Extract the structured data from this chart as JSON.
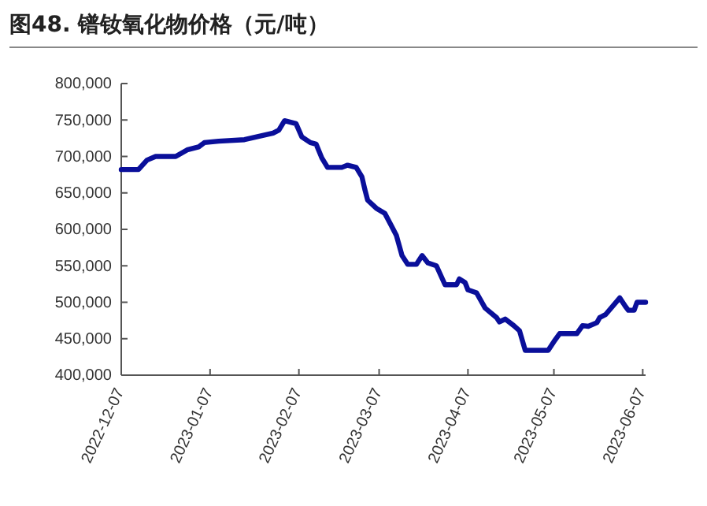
{
  "chart_data": {
    "type": "line",
    "title": "图48. 镨钕氧化物价格（元/吨）",
    "x": [
      "2022-12-07",
      "2022-12-13",
      "2022-12-16",
      "2022-12-19",
      "2022-12-26",
      "2022-12-30",
      "2023-01-03",
      "2023-01-05",
      "2023-01-10",
      "2023-01-19",
      "2023-01-29",
      "2023-01-31",
      "2023-02-02",
      "2023-02-06",
      "2023-02-08",
      "2023-02-11",
      "2023-02-13",
      "2023-02-15",
      "2023-02-17",
      "2023-02-22",
      "2023-02-24",
      "2023-02-27",
      "2023-03-01",
      "2023-03-02",
      "2023-03-03",
      "2023-03-06",
      "2023-03-09",
      "2023-03-11",
      "2023-03-13",
      "2023-03-15",
      "2023-03-17",
      "2023-03-20",
      "2023-03-22",
      "2023-03-24",
      "2023-03-27",
      "2023-03-30",
      "2023-04-03",
      "2023-04-04",
      "2023-04-06",
      "2023-04-07",
      "2023-04-10",
      "2023-04-13",
      "2023-04-17",
      "2023-04-18",
      "2023-04-20",
      "2023-04-23",
      "2023-04-25",
      "2023-04-27",
      "2023-05-05",
      "2023-05-07",
      "2023-05-09",
      "2023-05-15",
      "2023-05-17",
      "2023-05-19",
      "2023-05-22",
      "2023-05-23",
      "2023-05-25",
      "2023-05-30",
      "2023-06-01",
      "2023-06-02",
      "2023-06-04",
      "2023-06-05",
      "2023-06-08"
    ],
    "series": [
      {
        "color": "#0a0f9a",
        "values": [
          682000,
          682000,
          695000,
          700000,
          700000,
          709000,
          713000,
          719000,
          721000,
          723000,
          732000,
          736000,
          749000,
          745000,
          727000,
          719000,
          717000,
          698000,
          685000,
          685000,
          688000,
          685000,
          672000,
          655000,
          640000,
          629000,
          622000,
          607000,
          592000,
          564000,
          552000,
          552000,
          564000,
          554000,
          550000,
          524000,
          524000,
          532000,
          527000,
          517000,
          513000,
          492000,
          479000,
          473000,
          477000,
          468000,
          461000,
          434000,
          434000,
          446000,
          457000,
          457000,
          468000,
          467000,
          472000,
          479000,
          483000,
          506000,
          494000,
          489000,
          489000,
          500000,
          500000
        ]
      }
    ],
    "xlim": [
      "2022-12-07",
      "2023-06-08"
    ],
    "xticks": [
      {
        "value": "2022-12-07",
        "label": "2022-12-07"
      },
      {
        "value": "2023-01-07",
        "label": "2023-01-07"
      },
      {
        "value": "2023-02-07",
        "label": "2023-02-07"
      },
      {
        "value": "2023-03-07",
        "label": "2023-03-07"
      },
      {
        "value": "2023-04-07",
        "label": "2023-04-07"
      },
      {
        "value": "2023-05-07",
        "label": "2023-05-07"
      },
      {
        "value": "2023-06-07",
        "label": "2023-06-07"
      }
    ],
    "ylim": [
      400000,
      800000
    ],
    "yticks": [
      {
        "value": 400000,
        "label": "400,000"
      },
      {
        "value": 450000,
        "label": "450,000"
      },
      {
        "value": 500000,
        "label": "500,000"
      },
      {
        "value": 550000,
        "label": "550,000"
      },
      {
        "value": 600000,
        "label": "600,000"
      },
      {
        "value": 650000,
        "label": "650,000"
      },
      {
        "value": 700000,
        "label": "700,000"
      },
      {
        "value": 750000,
        "label": "750,000"
      },
      {
        "value": 800000,
        "label": "800,000"
      }
    ],
    "grid": false,
    "marker": "none",
    "line_style": "solid"
  }
}
